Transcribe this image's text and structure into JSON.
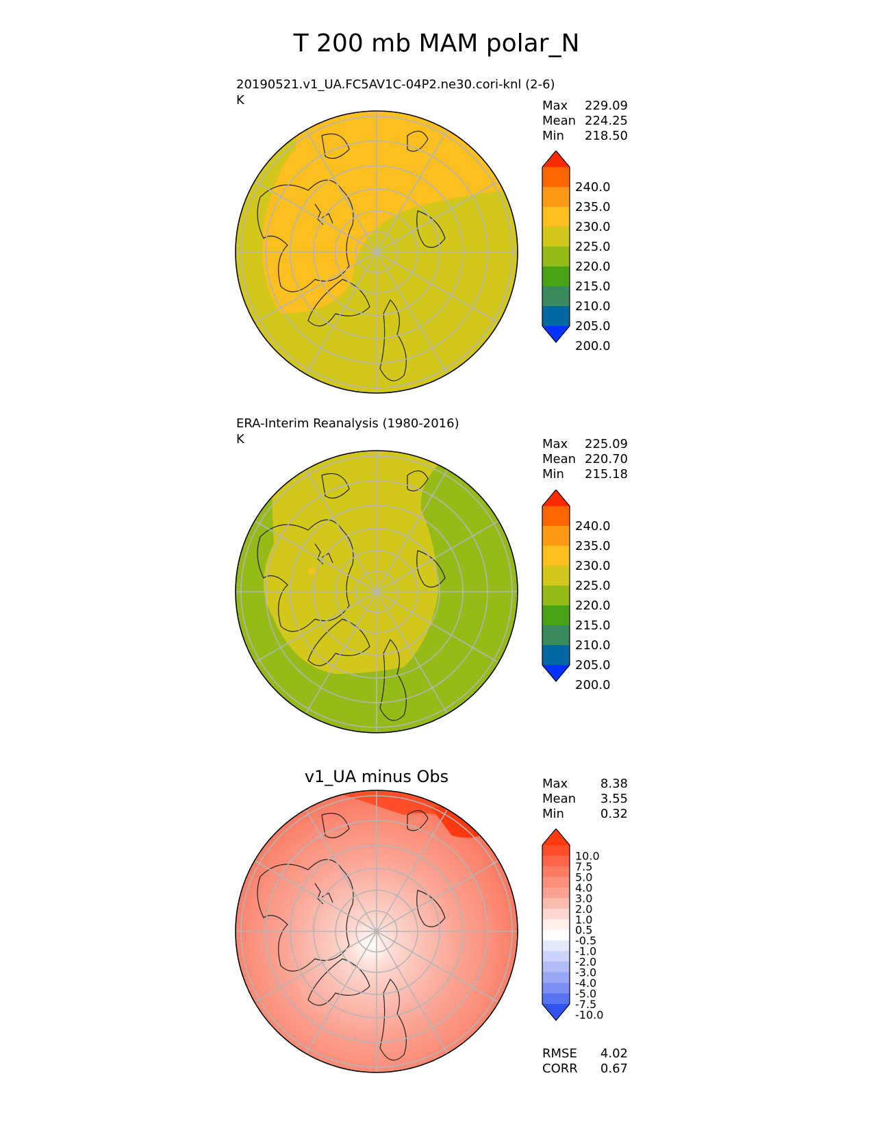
{
  "title": "T 200 mb MAM polar_N",
  "panels": [
    {
      "id": "test",
      "title": "20190521.v1_UA.FC5AV1C-04P2.ne30.cori-knl (2-6)",
      "units": "K",
      "stats": [
        {
          "label": "Max",
          "value": "229.09"
        },
        {
          "label": "Mean",
          "value": "224.25"
        },
        {
          "label": "Min",
          "value": "218.50"
        }
      ],
      "colorbar": {
        "labels": [
          "240.0",
          "235.0",
          "230.0",
          "225.0",
          "220.0",
          "215.0",
          "210.0",
          "205.0",
          "200.0"
        ],
        "colors": [
          "#ff2a00",
          "#ff6600",
          "#ff9a16",
          "#fbbf1f",
          "#d2c81c",
          "#96ba18",
          "#4aa316",
          "#3a8a5e",
          "#00679f",
          "#0033ff"
        ]
      }
    },
    {
      "id": "reference",
      "title": "ERA-Interim Reanalysis (1980-2016)",
      "units": "K",
      "stats": [
        {
          "label": "Max",
          "value": "225.09"
        },
        {
          "label": "Mean",
          "value": "220.70"
        },
        {
          "label": "Min",
          "value": "215.18"
        }
      ],
      "colorbar": {
        "labels": [
          "240.0",
          "235.0",
          "230.0",
          "225.0",
          "220.0",
          "215.0",
          "210.0",
          "205.0",
          "200.0"
        ],
        "colors": [
          "#ff2a00",
          "#ff6600",
          "#ff9a16",
          "#fbbf1f",
          "#d2c81c",
          "#96ba18",
          "#4aa316",
          "#3a8a5e",
          "#00679f",
          "#0033ff"
        ]
      }
    },
    {
      "id": "difference",
      "title": "v1_UA minus Obs",
      "stats": [
        {
          "label": "Max",
          "value": "8.38"
        },
        {
          "label": "Mean",
          "value": "3.55"
        },
        {
          "label": "Min",
          "value": "0.32"
        }
      ],
      "metrics": [
        {
          "label": "RMSE",
          "value": "4.02"
        },
        {
          "label": "CORR",
          "value": "0.67"
        }
      ],
      "colorbar": {
        "labels": [
          "10.0",
          "7.5",
          "5.0",
          "4.0",
          "3.0",
          "2.0",
          "1.0",
          "0.5",
          "-0.5",
          "-1.0",
          "-2.0",
          "-3.0",
          "-4.0",
          "-5.0",
          "-7.5",
          "-10.0"
        ],
        "colors": [
          "#ff3a10",
          "#ff4f2a",
          "#ff6549",
          "#fa7a62",
          "#fb8f7b",
          "#fba393",
          "#fbbcb0",
          "#fdd8d0",
          "#fff0ec",
          "#ffffff",
          "#e4e8fb",
          "#cbd3fa",
          "#b2bdf8",
          "#99a7f5",
          "#7d8ff2",
          "#5a73f0",
          "#3253f0"
        ]
      }
    }
  ]
}
